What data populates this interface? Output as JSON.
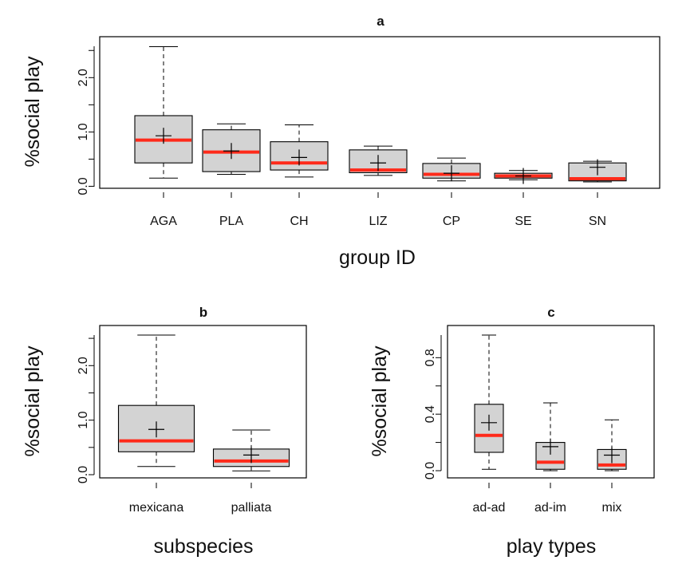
{
  "chart_data": [
    {
      "type": "box",
      "title": "a",
      "xlabel": "group ID",
      "ylabel": "%social play",
      "ylim": [
        0,
        2.6
      ],
      "yticks": [
        0.0,
        1.0,
        2.0
      ],
      "ytick_labels": [
        "0.0",
        "1.0",
        "2.0"
      ],
      "categories": [
        "AGA",
        "PLA",
        "CH",
        "LIZ",
        "CP",
        "SE",
        "SN"
      ],
      "boxes": [
        {
          "min": 0.15,
          "q1": 0.43,
          "median": 0.85,
          "q3": 1.3,
          "max": 2.57,
          "mean": 0.93
        },
        {
          "min": 0.22,
          "q1": 0.27,
          "median": 0.63,
          "q3": 1.04,
          "max": 1.15,
          "mean": 0.65
        },
        {
          "min": 0.17,
          "q1": 0.3,
          "median": 0.43,
          "q3": 0.82,
          "max": 1.13,
          "mean": 0.53
        },
        {
          "min": 0.2,
          "q1": 0.25,
          "median": 0.3,
          "q3": 0.67,
          "max": 0.74,
          "mean": 0.43
        },
        {
          "min": 0.1,
          "q1": 0.15,
          "median": 0.22,
          "q3": 0.42,
          "max": 0.52,
          "mean": 0.24
        },
        {
          "min": 0.12,
          "q1": 0.15,
          "median": 0.19,
          "q3": 0.24,
          "max": 0.29,
          "mean": 0.19
        },
        {
          "min": 0.08,
          "q1": 0.1,
          "median": 0.14,
          "q3": 0.43,
          "max": 0.46,
          "mean": 0.35
        }
      ]
    },
    {
      "type": "box",
      "title": "b",
      "xlabel": "subspecies",
      "ylabel": "%social play",
      "ylim": [
        0,
        2.6
      ],
      "yticks": [
        0.0,
        1.0,
        2.0
      ],
      "ytick_labels": [
        "0.0",
        "1.0",
        "2.0"
      ],
      "categories": [
        "mexicana",
        "palliata"
      ],
      "boxes": [
        {
          "min": 0.15,
          "q1": 0.42,
          "median": 0.62,
          "q3": 1.27,
          "max": 2.56,
          "mean": 0.83
        },
        {
          "min": 0.07,
          "q1": 0.15,
          "median": 0.25,
          "q3": 0.47,
          "max": 0.82,
          "mean": 0.36
        }
      ]
    },
    {
      "type": "box",
      "title": "c",
      "xlabel": "play types",
      "ylabel": "%social play",
      "ylim": [
        0,
        1.0
      ],
      "yticks": [
        0.0,
        0.4,
        0.8
      ],
      "ytick_labels": [
        "0.0",
        "0.4",
        "0.8"
      ],
      "categories": [
        "ad-ad",
        "ad-im",
        "mix"
      ],
      "boxes": [
        {
          "min": 0.01,
          "q1": 0.13,
          "median": 0.25,
          "q3": 0.47,
          "max": 0.96,
          "mean": 0.34
        },
        {
          "min": 0.0,
          "q1": 0.01,
          "median": 0.06,
          "q3": 0.2,
          "max": 0.48,
          "mean": 0.17
        },
        {
          "min": 0.0,
          "q1": 0.01,
          "median": 0.04,
          "q3": 0.15,
          "max": 0.36,
          "mean": 0.11
        }
      ]
    }
  ],
  "colors": {
    "box_fill": "#d3d3d3",
    "median": "#ff2a1a"
  }
}
